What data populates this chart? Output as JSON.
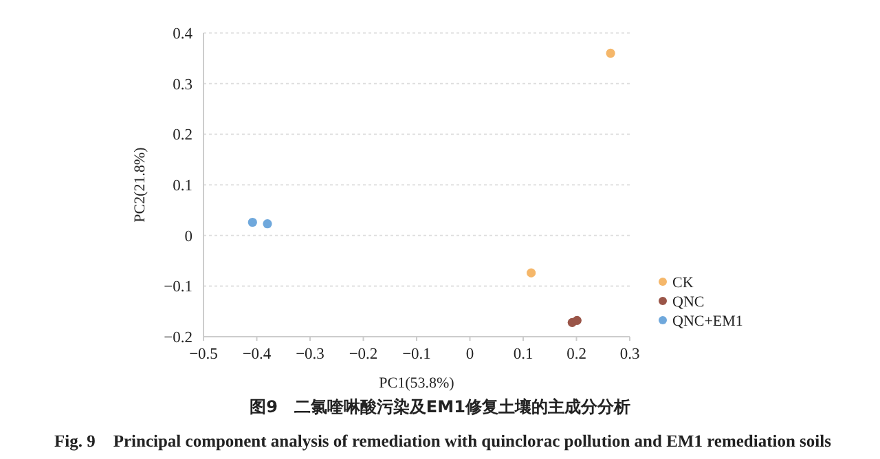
{
  "chart_data": {
    "type": "scatter",
    "xlabel": "PC1(53.8%)",
    "ylabel": "PC2(21.8%)",
    "annotations": [
      "图9　二氯喹啉酸污染及EM1修复土壤的主成分分析",
      "Fig. 9　Principal component analysis of remediation with quinclorac pollution and EM1 remediation soils"
    ],
    "series": [
      {
        "name": "CK",
        "color": "#f5b76a",
        "x": [
          0.264,
          0.115
        ],
        "values": [
          0.36,
          -0.074
        ]
      },
      {
        "name": "QNC",
        "color": "#9a5548",
        "x": [
          0.192,
          0.201
        ],
        "values": [
          -0.172,
          -0.168
        ]
      },
      {
        "name": "QNC+EM1",
        "color": "#6fa8dc",
        "x": [
          -0.408,
          -0.38
        ],
        "values": [
          0.026,
          0.023
        ]
      }
    ],
    "xlim": [
      -0.5,
      0.3
    ],
    "xticks": [
      -0.5,
      -0.4,
      -0.3,
      -0.2,
      -0.1,
      0,
      0.1,
      0.2,
      0.3
    ],
    "ylim": [
      -0.2,
      0.4
    ],
    "yticks": [
      -0.2,
      -0.1,
      0,
      0.1,
      0.2,
      0.3,
      0.4
    ],
    "grid": "y",
    "legend": "right",
    "marker": "circle"
  }
}
